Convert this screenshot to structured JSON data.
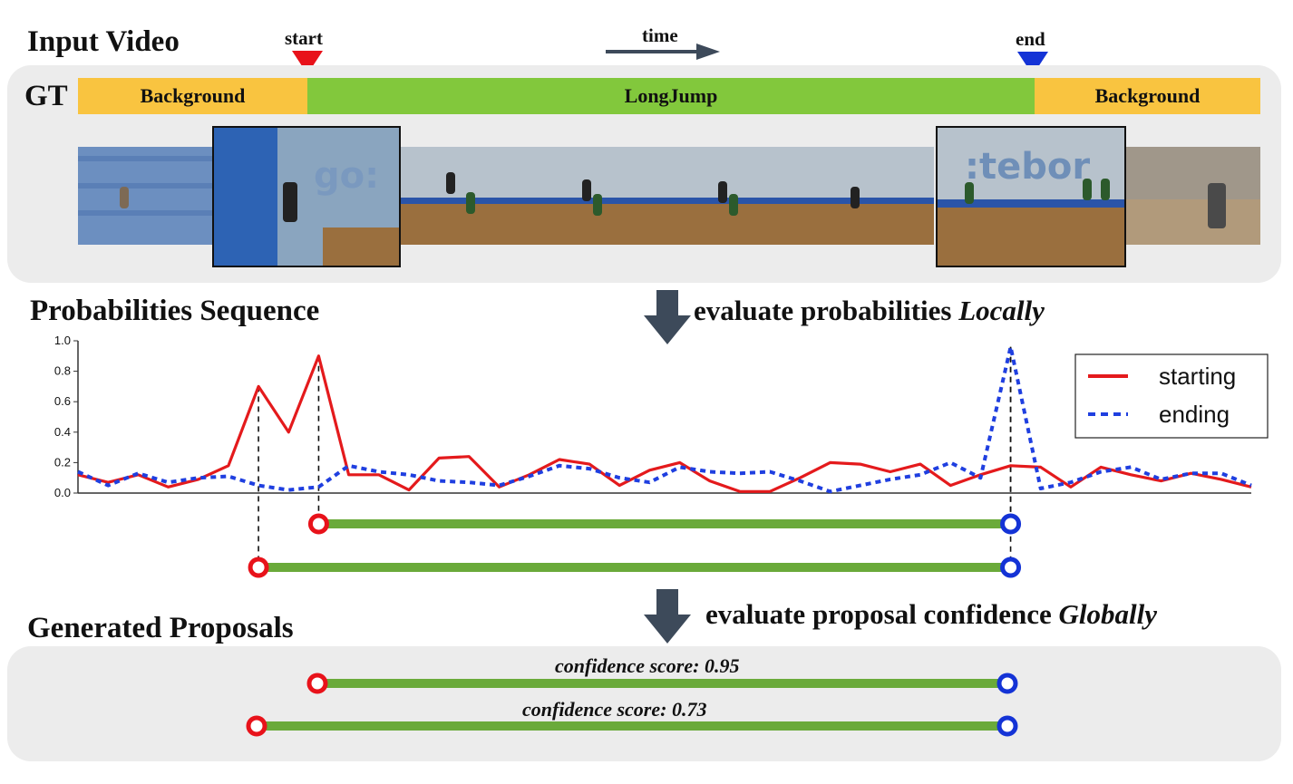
{
  "titles": {
    "input_video": "Input Video",
    "probabilities": "Probabilities Sequence",
    "proposals": "Generated Proposals"
  },
  "gt": {
    "label": "GT",
    "start_label": "start",
    "end_label": "end",
    "time_label": "time",
    "segments": [
      {
        "label": "Background",
        "color": "#f9c440"
      },
      {
        "label": "LongJump",
        "color": "#82c83c"
      },
      {
        "label": "Background",
        "color": "#f9c440"
      }
    ]
  },
  "steps": {
    "local_prefix": "evaluate probabilities ",
    "local_emph": "Locally",
    "global_prefix": "evaluate proposal confidence ",
    "global_emph": "Globally"
  },
  "chart_data": {
    "type": "line",
    "ylim": [
      0,
      1.0
    ],
    "yticks": [
      "0.0",
      "0.2",
      "0.4",
      "0.6",
      "0.8",
      "1.0"
    ],
    "legend_position": "top-right",
    "series": [
      {
        "name": "starting",
        "color": "#e41a1c",
        "style": "solid",
        "values": [
          0.12,
          0.07,
          0.12,
          0.04,
          0.09,
          0.18,
          0.7,
          0.4,
          0.9,
          0.12,
          0.12,
          0.02,
          0.23,
          0.24,
          0.04,
          0.12,
          0.22,
          0.19,
          0.05,
          0.15,
          0.2,
          0.08,
          0.01,
          0.01,
          0.1,
          0.2,
          0.19,
          0.14,
          0.19,
          0.05,
          0.12,
          0.18,
          0.17,
          0.04,
          0.17,
          0.12,
          0.08,
          0.13,
          0.09,
          0.04
        ]
      },
      {
        "name": "ending",
        "color": "#1f3fe0",
        "style": "dotted",
        "values": [
          0.14,
          0.05,
          0.13,
          0.07,
          0.1,
          0.11,
          0.05,
          0.02,
          0.04,
          0.18,
          0.14,
          0.12,
          0.08,
          0.07,
          0.05,
          0.11,
          0.18,
          0.16,
          0.1,
          0.07,
          0.17,
          0.14,
          0.13,
          0.14,
          0.08,
          0.01,
          0.05,
          0.09,
          0.12,
          0.2,
          0.1,
          0.96,
          0.03,
          0.07,
          0.14,
          0.17,
          0.09,
          0.13,
          0.13,
          0.05
        ]
      }
    ],
    "links": [
      {
        "start_index": 6,
        "end_index": 31
      },
      {
        "start_index": 8,
        "end_index": 31
      }
    ]
  },
  "proposals": [
    {
      "confidence": "confidence score: 0.95"
    },
    {
      "confidence": "confidence score: 0.73"
    }
  ],
  "colors": {
    "start_marker": "#e8121a",
    "end_marker": "#1433d6",
    "proposal_bar": "#6aaa3a",
    "arrow": "#3d4a5a"
  }
}
